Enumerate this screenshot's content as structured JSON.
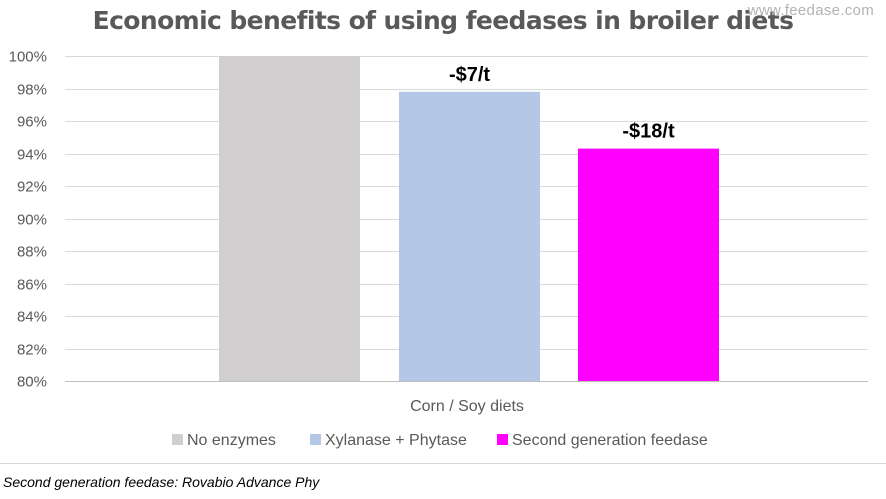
{
  "chart_data": {
    "type": "bar",
    "title": "Economic benefits of using feedases in broiler diets",
    "categories": [
      "Corn / Soy diets"
    ],
    "series": [
      {
        "name": "No enzymes",
        "values": [
          100
        ],
        "color": "#d0cece",
        "label": ""
      },
      {
        "name": "Xylanase + Phytase",
        "values": [
          97.8
        ],
        "color": "#b4c7e7",
        "label": "-$7/t"
      },
      {
        "name": "Second generation feedase",
        "values": [
          94.3
        ],
        "color": "#ff00ff",
        "label": "-$18/t"
      }
    ],
    "ylim": [
      80,
      100
    ],
    "yticks": [
      80,
      82,
      84,
      86,
      88,
      90,
      92,
      94,
      96,
      98,
      100
    ],
    "ytick_labels": [
      "80%",
      "82%",
      "84%",
      "86%",
      "88%",
      "90%",
      "92%",
      "94%",
      "96%",
      "98%",
      "100%"
    ],
    "xlabel": "",
    "ylabel": "",
    "grid": true,
    "legend_position": "bottom"
  },
  "watermark": "www.feedase.com",
  "footnote": "Second generation feedase: Rovabio Advance Phy"
}
